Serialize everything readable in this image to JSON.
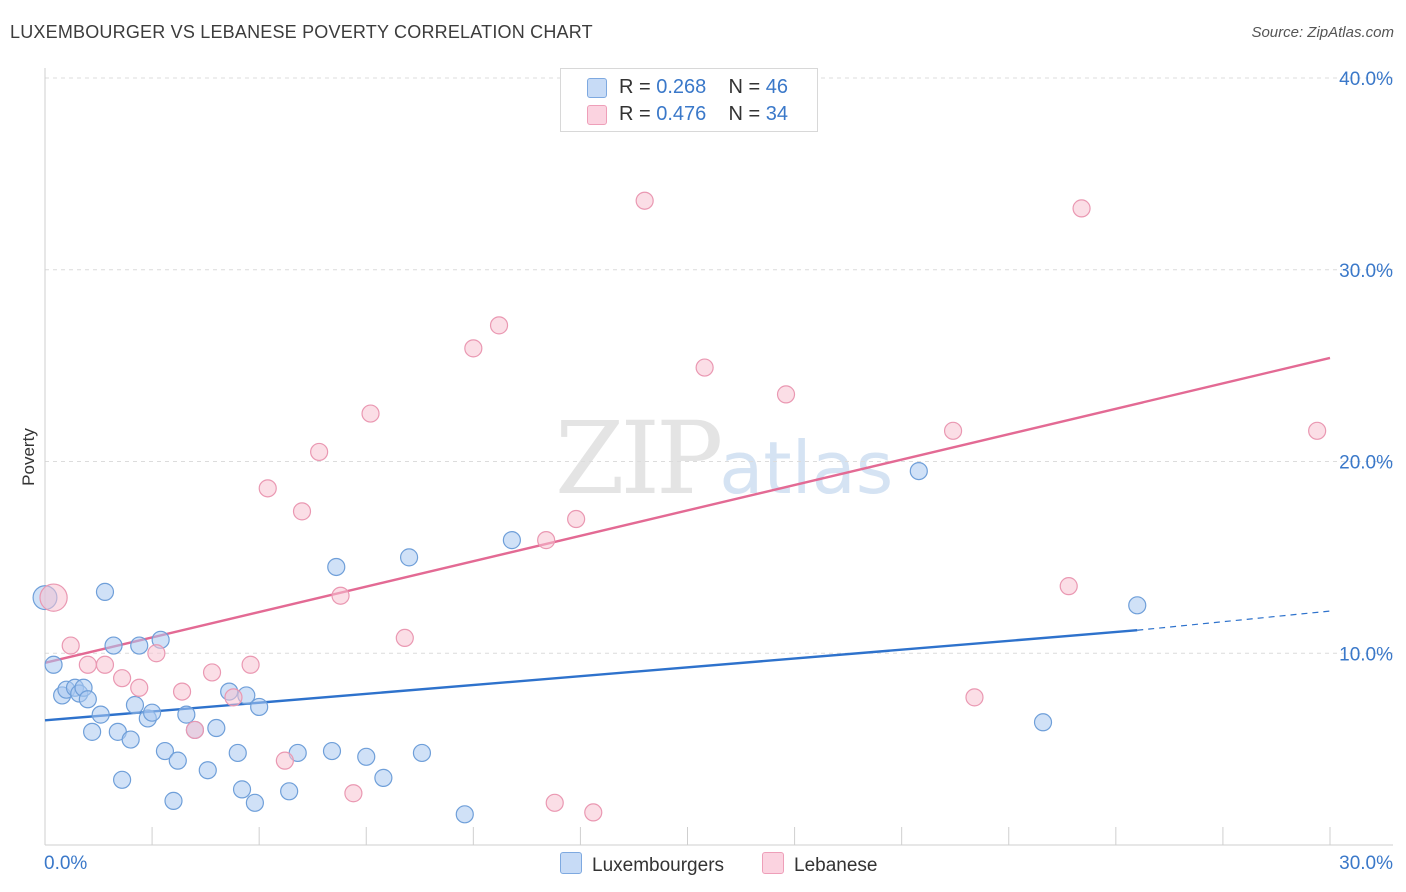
{
  "title": "LUXEMBOURGER VS LEBANESE POVERTY CORRELATION CHART",
  "source": "Source: ZipAtlas.com",
  "watermark": {
    "zip": "ZIP",
    "atlas": "atlas"
  },
  "legend": {
    "rows": [
      {
        "r_label": "R =",
        "r_value": "0.268",
        "n_label": "N =",
        "n_value": "46",
        "color": "#a9c8f0"
      },
      {
        "r_label": "R =",
        "r_value": "0.476",
        "n_label": "N =",
        "n_value": "34",
        "color": "#f5b9cb"
      }
    ]
  },
  "bottom_legend": {
    "series1": "Luxembourgers",
    "series2": "Lebanese"
  },
  "colors": {
    "lux_fill": "#a9c8f0",
    "lux_stroke": "#6f9fd9",
    "lux_line": "#2e72cc",
    "leb_fill": "#f8c2d2",
    "leb_stroke": "#ea98b2",
    "leb_line": "#e36a94",
    "grid": "#dcdcdc",
    "tick_text": "#3a78c9"
  },
  "chart_data": {
    "type": "scatter",
    "title": "LUXEMBOURGER VS LEBANESE POVERTY CORRELATION CHART",
    "xlabel": "",
    "ylabel": "Poverty",
    "xlim": [
      0,
      30
    ],
    "ylim": [
      0,
      40
    ],
    "x_tick_labels": [
      "0.0%",
      "30.0%"
    ],
    "y_tick_values": [
      10,
      20,
      30,
      40
    ],
    "y_tick_labels": [
      "10.0%",
      "20.0%",
      "30.0%",
      "40.0%"
    ],
    "grid": true,
    "series": [
      {
        "name": "Luxembourgers",
        "r": 0.268,
        "n": 46,
        "trend": {
          "x0": 0,
          "y0": 6.5,
          "x1": 25.5,
          "y1": 11.2,
          "dash_to_x": 30,
          "dash_to_y": 12.2
        },
        "points": [
          [
            0.0,
            12.9,
            1.4
          ],
          [
            0.2,
            9.4,
            1.0
          ],
          [
            0.4,
            7.8,
            1.0
          ],
          [
            0.5,
            8.1,
            1.0
          ],
          [
            0.7,
            8.2,
            1.0
          ],
          [
            0.8,
            7.9,
            1.0
          ],
          [
            0.9,
            8.2,
            1.0
          ],
          [
            1.0,
            7.6,
            1.0
          ],
          [
            1.1,
            5.9,
            1.0
          ],
          [
            1.3,
            6.8,
            1.0
          ],
          [
            1.4,
            13.2,
            1.0
          ],
          [
            1.6,
            10.4,
            1.0
          ],
          [
            1.7,
            5.9,
            1.0
          ],
          [
            1.8,
            3.4,
            1.0
          ],
          [
            2.0,
            5.5,
            1.0
          ],
          [
            2.1,
            7.3,
            1.0
          ],
          [
            2.2,
            10.4,
            1.0
          ],
          [
            2.4,
            6.6,
            1.0
          ],
          [
            2.5,
            6.9,
            1.0
          ],
          [
            2.7,
            10.7,
            1.0
          ],
          [
            2.8,
            4.9,
            1.0
          ],
          [
            3.0,
            2.3,
            1.0
          ],
          [
            3.1,
            4.4,
            1.0
          ],
          [
            3.3,
            6.8,
            1.0
          ],
          [
            3.5,
            6.0,
            1.0
          ],
          [
            3.8,
            3.9,
            1.0
          ],
          [
            4.0,
            6.1,
            1.0
          ],
          [
            4.3,
            8.0,
            1.0
          ],
          [
            4.5,
            4.8,
            1.0
          ],
          [
            4.6,
            2.9,
            1.0
          ],
          [
            4.7,
            7.8,
            1.0
          ],
          [
            4.9,
            2.2,
            1.0
          ],
          [
            5.0,
            7.2,
            1.0
          ],
          [
            5.7,
            2.8,
            1.0
          ],
          [
            5.9,
            4.8,
            1.0
          ],
          [
            6.7,
            4.9,
            1.0
          ],
          [
            6.8,
            14.5,
            1.0
          ],
          [
            7.5,
            4.6,
            1.0
          ],
          [
            7.9,
            3.5,
            1.0
          ],
          [
            8.5,
            15.0,
            1.0
          ],
          [
            8.8,
            4.8,
            1.0
          ],
          [
            9.8,
            1.6,
            1.0
          ],
          [
            10.9,
            15.9,
            1.0
          ],
          [
            20.4,
            19.5,
            1.0
          ],
          [
            23.3,
            6.4,
            1.0
          ],
          [
            25.5,
            12.5,
            1.0
          ]
        ]
      },
      {
        "name": "Lebanese",
        "r": 0.476,
        "n": 34,
        "trend": {
          "x0": 0,
          "y0": 9.5,
          "x1": 30,
          "y1": 25.4
        },
        "points": [
          [
            0.2,
            12.9,
            1.6
          ],
          [
            0.6,
            10.4,
            1.0
          ],
          [
            1.0,
            9.4,
            1.0
          ],
          [
            1.4,
            9.4,
            1.0
          ],
          [
            1.8,
            8.7,
            1.0
          ],
          [
            2.2,
            8.2,
            1.0
          ],
          [
            2.6,
            10.0,
            1.0
          ],
          [
            3.2,
            8.0,
            1.0
          ],
          [
            3.5,
            6.0,
            1.0
          ],
          [
            3.9,
            9.0,
            1.0
          ],
          [
            4.4,
            7.7,
            1.0
          ],
          [
            4.8,
            9.4,
            1.0
          ],
          [
            5.2,
            18.6,
            1.0
          ],
          [
            5.6,
            4.4,
            1.0
          ],
          [
            6.0,
            17.4,
            1.0
          ],
          [
            6.4,
            20.5,
            1.0
          ],
          [
            6.9,
            13.0,
            1.0
          ],
          [
            7.2,
            2.7,
            1.0
          ],
          [
            7.6,
            22.5,
            1.0
          ],
          [
            8.4,
            10.8,
            1.0
          ],
          [
            10.0,
            25.9,
            1.0
          ],
          [
            10.6,
            27.1,
            1.0
          ],
          [
            11.7,
            15.9,
            1.0
          ],
          [
            11.9,
            2.2,
            1.0
          ],
          [
            12.4,
            17.0,
            1.0
          ],
          [
            12.8,
            1.7,
            1.0
          ],
          [
            14.0,
            33.6,
            1.0
          ],
          [
            15.4,
            24.9,
            1.0
          ],
          [
            17.3,
            23.5,
            1.0
          ],
          [
            21.2,
            21.6,
            1.0
          ],
          [
            21.7,
            7.7,
            1.0
          ],
          [
            23.9,
            13.5,
            1.0
          ],
          [
            24.2,
            33.2,
            1.0
          ],
          [
            29.7,
            21.6,
            1.0
          ]
        ]
      }
    ]
  }
}
